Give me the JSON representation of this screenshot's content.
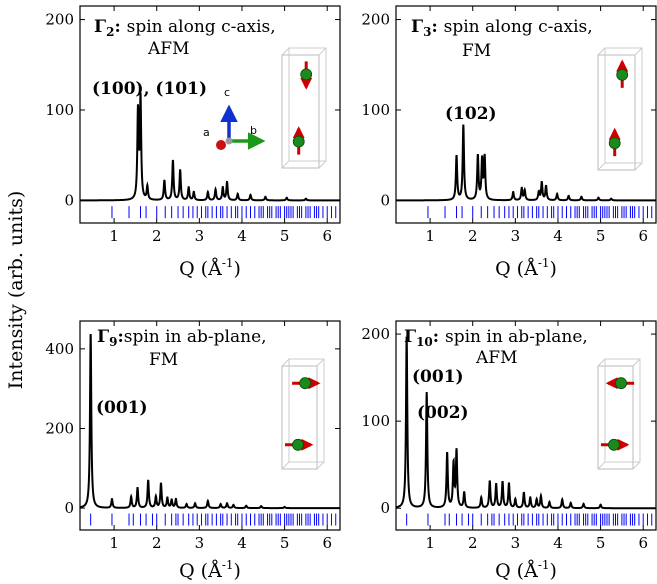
{
  "figure": {
    "ylabel": "Intensity (arb. units)",
    "line_color": "#000000",
    "reflection_color": "#0000ff",
    "atom_color": "#1a8a1a",
    "spin_color": "#cc0000"
  },
  "chart_data": [
    {
      "type": "line",
      "title_symbol": "Γ",
      "title_sub": "2",
      "title_line1": "spin along c-axis,",
      "title_line2": "AFM",
      "peak_labels": [
        "(100), (101)"
      ],
      "xlabel": "Q (Å⁻¹)",
      "xlim": [
        0.2,
        6.3
      ],
      "ylim": [
        -25,
        215
      ],
      "xticks": [
        1,
        2,
        3,
        4,
        5,
        6
      ],
      "yticks": [
        0,
        100,
        200
      ],
      "spin_direction": "c-axis-antiparallel",
      "axes_triad_labels": {
        "a": "a",
        "b": "b",
        "c": "c"
      },
      "peaks": [
        [
          1.56,
          97
        ],
        [
          1.62,
          111
        ],
        [
          1.78,
          15
        ],
        [
          2.18,
          22
        ],
        [
          2.38,
          44
        ],
        [
          2.55,
          33
        ],
        [
          2.75,
          14
        ],
        [
          2.87,
          9
        ],
        [
          3.2,
          9
        ],
        [
          3.38,
          12
        ],
        [
          3.55,
          14
        ],
        [
          3.65,
          20
        ],
        [
          3.9,
          7
        ],
        [
          4.2,
          6
        ],
        [
          4.55,
          4
        ],
        [
          5.05,
          3
        ],
        [
          5.5,
          2
        ]
      ],
      "reflections": [
        0.95,
        1.35,
        1.62,
        1.75,
        2.0,
        2.2,
        2.35,
        2.5,
        2.62,
        2.75,
        2.85,
        2.95,
        3.05,
        3.15,
        3.2,
        3.3,
        3.4,
        3.5,
        3.55,
        3.65,
        3.75,
        3.85,
        3.9,
        4.0,
        4.1,
        4.2,
        4.3,
        4.4,
        4.45,
        4.5,
        4.6,
        4.65,
        4.7,
        4.8,
        4.85,
        4.9,
        5.0,
        5.05,
        5.1,
        5.15,
        5.2,
        5.3,
        5.35,
        5.4,
        5.5,
        5.55,
        5.6,
        5.7,
        5.75,
        5.8,
        5.9,
        6.0,
        6.1,
        6.2
      ]
    },
    {
      "type": "line",
      "title_symbol": "Γ",
      "title_sub": "3",
      "title_line1": "spin along c-axis,",
      "title_line2": "FM",
      "peak_labels": [
        "(102)"
      ],
      "xlabel": "Q (Å⁻¹)",
      "xlim": [
        0.2,
        6.3
      ],
      "ylim": [
        -25,
        215
      ],
      "xticks": [
        1,
        2,
        3,
        4,
        5,
        6
      ],
      "yticks": [
        0,
        100,
        200
      ],
      "spin_direction": "c-axis-parallel",
      "peaks": [
        [
          1.62,
          49
        ],
        [
          1.78,
          83
        ],
        [
          2.12,
          49
        ],
        [
          2.22,
          44
        ],
        [
          2.28,
          47
        ],
        [
          2.95,
          9
        ],
        [
          3.15,
          13
        ],
        [
          3.22,
          11
        ],
        [
          3.55,
          9
        ],
        [
          3.62,
          20
        ],
        [
          3.72,
          16
        ],
        [
          3.98,
          7
        ],
        [
          4.25,
          5
        ],
        [
          4.55,
          4
        ],
        [
          4.95,
          3
        ],
        [
          5.25,
          2
        ]
      ],
      "reflections": [
        0.95,
        1.35,
        1.62,
        1.75,
        2.0,
        2.2,
        2.35,
        2.5,
        2.62,
        2.75,
        2.85,
        2.95,
        3.05,
        3.15,
        3.2,
        3.3,
        3.4,
        3.5,
        3.55,
        3.65,
        3.75,
        3.85,
        3.9,
        4.0,
        4.1,
        4.2,
        4.3,
        4.4,
        4.45,
        4.5,
        4.6,
        4.65,
        4.7,
        4.8,
        4.85,
        4.9,
        5.0,
        5.05,
        5.1,
        5.15,
        5.2,
        5.3,
        5.35,
        5.4,
        5.5,
        5.55,
        5.6,
        5.7,
        5.75,
        5.8,
        5.9,
        6.0,
        6.1,
        6.2
      ]
    },
    {
      "type": "line",
      "title_symbol": "Γ",
      "title_sub": "9",
      "title_line1": "spin in ab-plane,",
      "title_line2": "FM",
      "peak_labels": [
        "(001)"
      ],
      "xlabel": "Q (Å⁻¹)",
      "xlim": [
        0.2,
        6.3
      ],
      "ylim": [
        -55,
        470
      ],
      "xticks": [
        1,
        2,
        3,
        4,
        5,
        6
      ],
      "yticks": [
        0,
        200,
        400
      ],
      "spin_direction": "ab-plane-parallel",
      "peaks": [
        [
          0.45,
          440
        ],
        [
          0.95,
          22
        ],
        [
          1.4,
          28
        ],
        [
          1.55,
          50
        ],
        [
          1.8,
          70
        ],
        [
          1.98,
          28
        ],
        [
          2.1,
          62
        ],
        [
          2.25,
          25
        ],
        [
          2.35,
          20
        ],
        [
          2.45,
          22
        ],
        [
          2.7,
          10
        ],
        [
          2.9,
          12
        ],
        [
          3.2,
          18
        ],
        [
          3.5,
          10
        ],
        [
          3.65,
          12
        ],
        [
          3.8,
          8
        ],
        [
          4.1,
          6
        ],
        [
          4.45,
          5
        ],
        [
          5.0,
          3
        ]
      ],
      "reflections": [
        0.45,
        0.95,
        1.35,
        1.45,
        1.62,
        1.75,
        1.9,
        2.0,
        2.2,
        2.35,
        2.45,
        2.5,
        2.62,
        2.75,
        2.85,
        2.95,
        3.05,
        3.15,
        3.2,
        3.3,
        3.4,
        3.5,
        3.55,
        3.65,
        3.75,
        3.85,
        3.9,
        4.0,
        4.1,
        4.2,
        4.3,
        4.4,
        4.45,
        4.5,
        4.6,
        4.65,
        4.7,
        4.8,
        4.85,
        4.9,
        5.0,
        5.05,
        5.1,
        5.15,
        5.2,
        5.3,
        5.35,
        5.4,
        5.5,
        5.55,
        5.6,
        5.7,
        5.75,
        5.8,
        5.9,
        6.0,
        6.1,
        6.2
      ]
    },
    {
      "type": "line",
      "title_symbol": "Γ",
      "title_sub": "10",
      "title_line1": "spin in ab-plane,",
      "title_line2": "AFM",
      "peak_labels": [
        "(001)",
        "(002)"
      ],
      "xlabel": "Q (Å⁻¹)",
      "xlim": [
        0.2,
        6.3
      ],
      "ylim": [
        -25,
        215
      ],
      "xticks": [
        1,
        2,
        3,
        4,
        5,
        6
      ],
      "yticks": [
        0,
        100,
        200
      ],
      "spin_direction": "ab-plane-antiparallel",
      "peaks": [
        [
          0.45,
          198
        ],
        [
          0.92,
          133
        ],
        [
          1.4,
          63
        ],
        [
          1.55,
          50
        ],
        [
          1.62,
          65
        ],
        [
          1.8,
          18
        ],
        [
          2.2,
          12
        ],
        [
          2.4,
          31
        ],
        [
          2.55,
          27
        ],
        [
          2.7,
          30
        ],
        [
          2.85,
          28
        ],
        [
          3.0,
          10
        ],
        [
          3.2,
          18
        ],
        [
          3.35,
          12
        ],
        [
          3.5,
          10
        ],
        [
          3.6,
          14
        ],
        [
          3.8,
          7
        ],
        [
          4.1,
          10
        ],
        [
          4.3,
          6
        ],
        [
          4.6,
          5
        ],
        [
          5.0,
          4
        ]
      ],
      "reflections": [
        0.45,
        0.95,
        1.35,
        1.45,
        1.62,
        1.75,
        1.9,
        2.0,
        2.2,
        2.35,
        2.45,
        2.5,
        2.62,
        2.75,
        2.85,
        2.95,
        3.05,
        3.15,
        3.2,
        3.3,
        3.4,
        3.5,
        3.55,
        3.65,
        3.75,
        3.85,
        3.9,
        4.0,
        4.1,
        4.2,
        4.3,
        4.4,
        4.45,
        4.5,
        4.6,
        4.65,
        4.7,
        4.8,
        4.85,
        4.9,
        5.0,
        5.05,
        5.1,
        5.15,
        5.2,
        5.3,
        5.35,
        5.4,
        5.5,
        5.55,
        5.6,
        5.7,
        5.75,
        5.8,
        5.9,
        6.0,
        6.1,
        6.2
      ]
    }
  ]
}
